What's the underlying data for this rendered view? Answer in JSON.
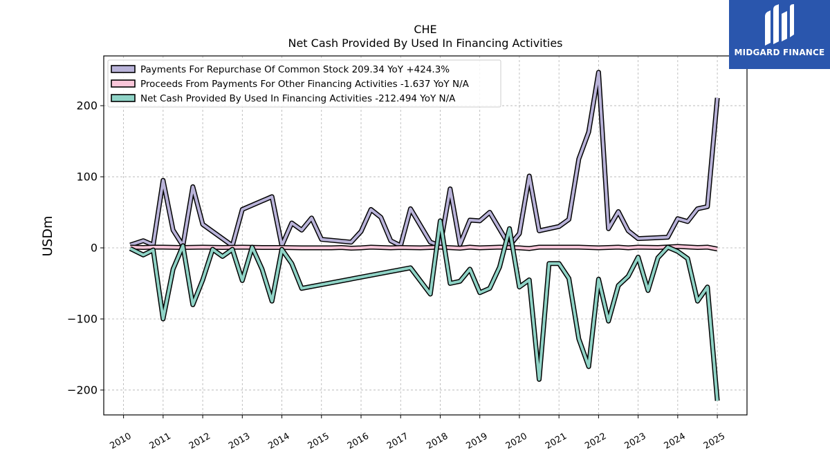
{
  "logo": {
    "text": "MIDGARD FINANCE",
    "icon": "midgard-m-logo-icon",
    "bg_color": "#2a56ad"
  },
  "chart_data": {
    "type": "line",
    "title": "CHE",
    "subtitle": "Net Cash Provided By Used In Financing Activities",
    "xlabel": "",
    "ylabel": "USDm",
    "xlim": [
      2009.5,
      2025.75
    ],
    "ylim": [
      -235,
      270
    ],
    "yticks": [
      -200,
      -100,
      0,
      100,
      200
    ],
    "ytick_labels": [
      "−200",
      "−100",
      "0",
      "100",
      "200"
    ],
    "xticks": [
      2010,
      2011,
      2012,
      2013,
      2014,
      2015,
      2016,
      2017,
      2018,
      2019,
      2020,
      2021,
      2022,
      2023,
      2024,
      2025
    ],
    "xtick_labels": [
      "2010",
      "2011",
      "2012",
      "2013",
      "2014",
      "2015",
      "2016",
      "2017",
      "2018",
      "2019",
      "2020",
      "2021",
      "2022",
      "2023",
      "2024",
      "2025"
    ],
    "grid": true,
    "legend_position": "top-left",
    "series": [
      {
        "name": "Payments For Repurchase Of Common Stock",
        "legend_label": "Payments For Repurchase Of Common Stock  209.34 YoY +424.3%",
        "color": "#b9b3d9",
        "x": [
          2010.17,
          2010.5,
          2010.75,
          2011.0,
          2011.25,
          2011.5,
          2011.75,
          2012.0,
          2012.75,
          2013.0,
          2013.75,
          2014.0,
          2014.25,
          2014.5,
          2014.75,
          2015.0,
          2015.75,
          2016.0,
          2016.25,
          2016.5,
          2016.75,
          2017.0,
          2017.25,
          2017.75,
          2018.0,
          2018.25,
          2018.5,
          2018.75,
          2019.0,
          2019.25,
          2019.75,
          2020.0,
          2020.25,
          2020.5,
          2021.0,
          2021.25,
          2021.5,
          2021.75,
          2022.0,
          2022.25,
          2022.5,
          2022.75,
          2023.0,
          2023.75,
          2024.0,
          2024.25,
          2024.5,
          2024.75,
          2025.0
        ],
        "values": [
          4,
          10,
          4,
          95,
          25,
          3,
          86,
          33,
          3,
          54,
          72,
          3,
          35,
          25,
          42,
          12,
          8,
          23,
          54,
          43,
          10,
          3,
          55,
          8,
          3,
          83,
          5,
          39,
          38,
          50,
          3,
          20,
          101,
          24,
          30,
          40,
          125,
          163,
          247,
          27,
          51,
          24,
          13,
          15,
          41,
          37,
          55,
          58,
          211
        ]
      },
      {
        "name": "Proceeds From Payments For Other Financing Activities",
        "legend_label": "Proceeds From Payments For Other Financing Activities  -1.637 YoY N/A",
        "color": "#f9c6d9",
        "x": [
          2010.17,
          2010.5,
          2010.75,
          2011.0,
          2011.5,
          2012.0,
          2012.5,
          2013.0,
          2013.5,
          2014.0,
          2014.5,
          2015.0,
          2015.25,
          2015.5,
          2015.75,
          2016.0,
          2016.25,
          2016.5,
          2016.75,
          2017.0,
          2017.5,
          2018.0,
          2018.5,
          2018.75,
          2019.0,
          2019.5,
          2020.0,
          2020.25,
          2020.5,
          2021.0,
          2021.5,
          2022.0,
          2022.5,
          2022.75,
          2023.0,
          2023.5,
          2024.0,
          2024.5,
          2024.75,
          2025.0
        ],
        "values": [
          1,
          0.5,
          1,
          1,
          0.5,
          1,
          0.5,
          1,
          0.5,
          0.5,
          0,
          0,
          0,
          0.5,
          -0.5,
          0,
          1,
          0.5,
          0,
          0.5,
          0,
          1,
          -0.5,
          1,
          0,
          1,
          0,
          -1,
          1,
          1,
          1,
          0,
          1,
          0,
          1,
          0.5,
          2,
          0.5,
          1,
          -1.6
        ]
      },
      {
        "name": "Net Cash Provided By Used In Financing Activities",
        "legend_label": "Net Cash Provided By Used In Financing Activities  -212.494 YoY N/A",
        "color": "#8fd3c6",
        "x": [
          2010.17,
          2010.5,
          2010.75,
          2011.0,
          2011.25,
          2011.5,
          2011.75,
          2012.0,
          2012.25,
          2012.5,
          2012.75,
          2013.0,
          2013.25,
          2013.5,
          2013.75,
          2014.0,
          2014.25,
          2014.5,
          2017.25,
          2017.75,
          2018.0,
          2018.25,
          2018.5,
          2018.75,
          2019.0,
          2019.25,
          2019.5,
          2019.75,
          2020.0,
          2020.25,
          2020.5,
          2020.75,
          2021.0,
          2021.25,
          2021.5,
          2021.75,
          2022.0,
          2022.25,
          2022.5,
          2022.75,
          2023.0,
          2023.25,
          2023.5,
          2023.75,
          2024.0,
          2024.25,
          2024.5,
          2024.75,
          2025.0
        ],
        "values": [
          -1,
          -10,
          -3,
          -100,
          -30,
          3,
          -80,
          -45,
          -2,
          -12,
          -2,
          -46,
          1,
          -30,
          -75,
          -2,
          -22,
          -57,
          -28,
          -65,
          38,
          -50,
          -47,
          -30,
          -63,
          -57,
          -27,
          27,
          -55,
          -45,
          -185,
          -22,
          -22,
          -43,
          -128,
          -167,
          -44,
          -103,
          -53,
          -40,
          -13,
          -60,
          -14,
          1,
          -5,
          -15,
          -75,
          -55,
          -215
        ]
      }
    ]
  }
}
